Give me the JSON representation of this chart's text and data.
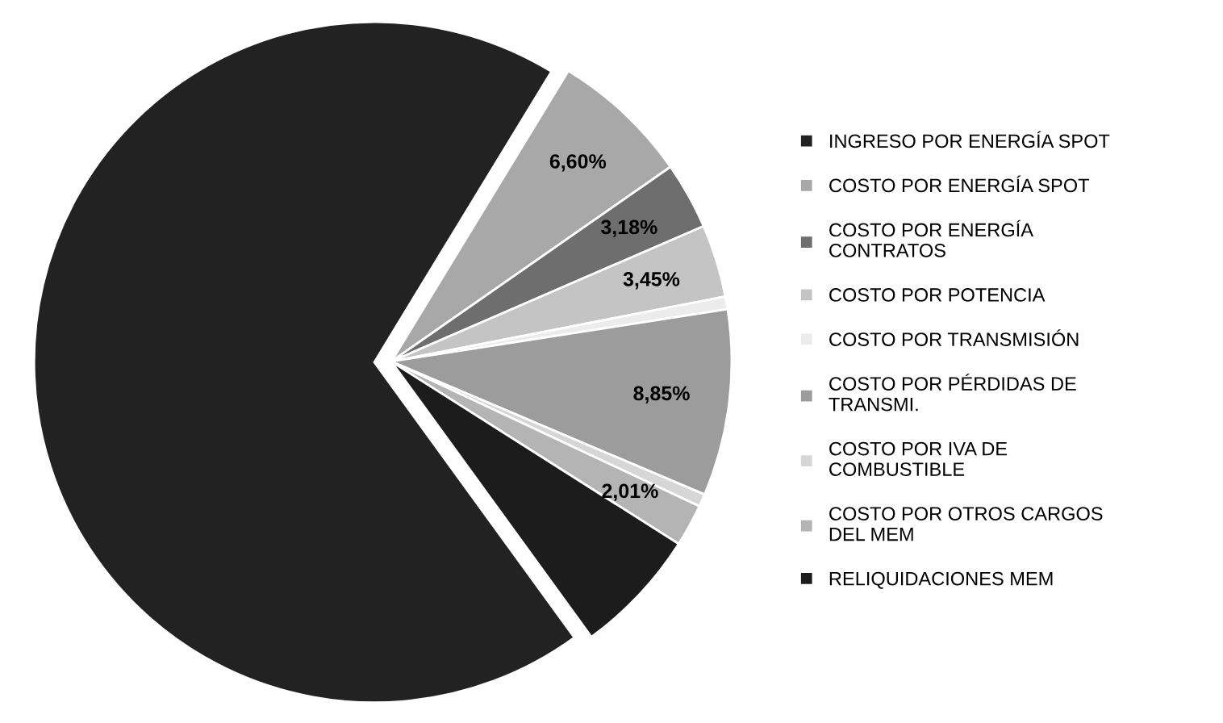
{
  "chart_data": {
    "type": "pie",
    "categories": [
      "INGRESO POR ENERGÍA SPOT",
      "COSTO POR ENERGÍA SPOT",
      "COSTO POR ENERGÍA\nCONTRATOS",
      "COSTO POR POTENCIA",
      "COSTO POR TRANSMISIÓN",
      "COSTO POR PÉRDIDAS DE\nTRANSMI.",
      "COSTO POR IVA DE\nCOMBUSTIBLE",
      "COSTO POR OTROS CARGOS\nDEL MEM",
      "RELIQUIDACIONES MEM"
    ],
    "values": [
      68.71,
      6.6,
      3.18,
      3.45,
      0.6,
      8.85,
      0.6,
      2.01,
      6.0
    ],
    "value_labels": [
      null,
      "6,60%",
      "3,18%",
      "3,45%",
      null,
      "8,85%",
      null,
      "2,01%",
      null
    ],
    "colors": [
      "#222222",
      "#a8a8a8",
      "#6e6e6e",
      "#c4c4c4",
      "#ececec",
      "#9c9c9c",
      "#d6d6d6",
      "#b4b4b4",
      "#1c1c1c"
    ],
    "legend": "right"
  }
}
